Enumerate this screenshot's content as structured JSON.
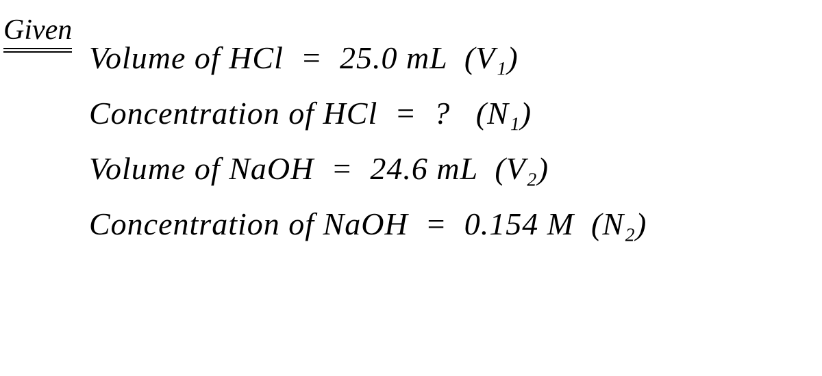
{
  "heading": "Given",
  "equations": {
    "line1": {
      "label": "Volume of HCl",
      "equals": "=",
      "value": "25.0 mL",
      "symbol": "(V₁)"
    },
    "line2": {
      "label": "Concentration of HCl",
      "equals": "=",
      "value": "?",
      "symbol": "(N₁)"
    },
    "line3": {
      "label": "Volume of NaOH",
      "equals": "=",
      "value": "24.6 mL",
      "symbol": "(V₂)"
    },
    "line4": {
      "label": "Concentration of NaOH",
      "equals": "=",
      "value": "0.154 M",
      "symbol": "(N₂)"
    }
  },
  "styling": {
    "background_color": "#ffffff",
    "text_color": "#000000",
    "font_family": "cursive",
    "heading_fontsize": 42,
    "equation_fontsize": 46,
    "line_spacing": 28
  }
}
